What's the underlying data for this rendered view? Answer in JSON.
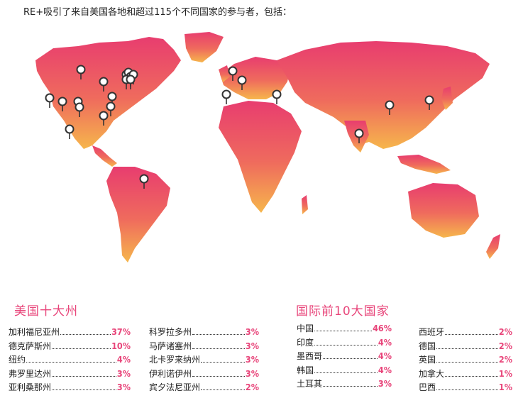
{
  "intro": "RE+吸引了来自美国各地和超过115个不同国家的参与者，包括：",
  "colors": {
    "accent": "#e8457a",
    "map_top": "#ec3f6e",
    "map_bottom": "#f5b24e"
  },
  "map": {
    "pin_icon": "map-pin-icon",
    "pin_count": 24
  },
  "us_section": {
    "title": "美国十大州",
    "col1": [
      {
        "name": "加利福尼亚州",
        "pct": "37%"
      },
      {
        "name": "德克萨斯州",
        "pct": "10%"
      },
      {
        "name": "纽约",
        "pct": "4%"
      },
      {
        "name": "弗罗里达州",
        "pct": "3%"
      },
      {
        "name": "亚利桑那州",
        "pct": "3%"
      }
    ],
    "col2": [
      {
        "name": "科罗拉多州",
        "pct": "3%"
      },
      {
        "name": "马萨诸塞州",
        "pct": "3%"
      },
      {
        "name": "北卡罗来纳州",
        "pct": "3%"
      },
      {
        "name": "伊利诺伊州",
        "pct": "3%"
      },
      {
        "name": "宾夕法尼亚州",
        "pct": "2%"
      }
    ]
  },
  "country_section": {
    "title": "国际前10大国家",
    "col1": [
      {
        "name": "中国",
        "pct": "46%"
      },
      {
        "name": "印度",
        "pct": "4%"
      },
      {
        "name": "墨西哥",
        "pct": "4%"
      },
      {
        "name": "韩国",
        "pct": "4%"
      },
      {
        "name": "土耳其",
        "pct": "3%"
      }
    ],
    "col2": [
      {
        "name": "西班牙",
        "pct": "2%"
      },
      {
        "name": "德国",
        "pct": "2%"
      },
      {
        "name": "英国",
        "pct": "2%"
      },
      {
        "name": "加拿大",
        "pct": "1%"
      },
      {
        "name": "巴西",
        "pct": "1%"
      }
    ]
  }
}
